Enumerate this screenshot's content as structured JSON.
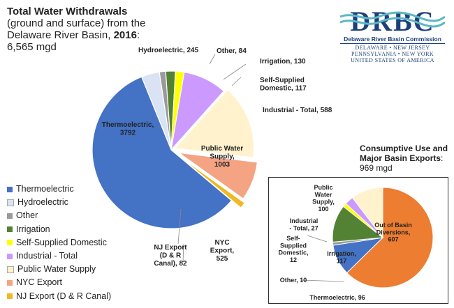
{
  "chart_data": [
    {
      "type": "pie",
      "title_bold": "Total Water Withdrawals",
      "title_line2": "(ground and surface) from the",
      "title_line3_prefix": "Delaware River Basin, ",
      "title_year": "2016",
      "title_line3_suffix": ":",
      "title_total": "6,565 mgd",
      "slices": [
        {
          "name": "Thermoelectric",
          "value": 3792,
          "color": "#4472c4",
          "label": [
            "Thermoelectric,",
            "3792"
          ]
        },
        {
          "name": "Hydroelectric",
          "value": 245,
          "color": "#dae3f3",
          "label": [
            "Hydroelectric, 245"
          ]
        },
        {
          "name": "Other",
          "value": 84,
          "color": "#9a9a9a",
          "label": [
            "Other, 84"
          ]
        },
        {
          "name": "Irrigation",
          "value": 130,
          "color": "#548235",
          "label": [
            "Irrigation, 130"
          ]
        },
        {
          "name": "Self-Supplied Domestic",
          "value": 117,
          "color": "#ffff00",
          "label": [
            "Self-Supplied",
            "Domestic, 117"
          ]
        },
        {
          "name": "Industrial - Total",
          "value": 588,
          "color": "#cc99ff",
          "label": [
            "Industrial - Total, 588"
          ]
        },
        {
          "name": "Public Water Supply",
          "value": 1003,
          "color": "#fff2cc",
          "label": [
            "Public Water",
            "Supply,",
            "1003"
          ]
        },
        {
          "name": "NYC Export",
          "value": 525,
          "color": "#f4a383",
          "label": [
            "NYC",
            "Export,",
            "525"
          ]
        },
        {
          "name": "NJ Export (D & R Canal)",
          "value": 82,
          "color": "#f0b823",
          "label": [
            "NJ Export",
            "(D & R",
            "Canal), 82"
          ]
        }
      ]
    },
    {
      "type": "pie",
      "title_bold_1": "Consumptive Use and",
      "title_bold_2": "Major Basin Exports",
      "title_suffix": ":",
      "title_total": "969 mgd",
      "slices": [
        {
          "name": "Out of Basin Diversions",
          "value": 607,
          "color": "#ed7d31",
          "label": [
            "Out of Basin",
            "Diversions,",
            "607"
          ]
        },
        {
          "name": "Thermoelectric",
          "value": 96,
          "color": "#4472c4",
          "label": [
            "Thermoelectric, 96"
          ]
        },
        {
          "name": "Other",
          "value": 10,
          "color": "#9a9a9a",
          "label": [
            "Other, 10"
          ]
        },
        {
          "name": "Irrigation",
          "value": 117,
          "color": "#548235",
          "label": [
            "Irrigation,",
            "117"
          ]
        },
        {
          "name": "Self-Supplied Domestic",
          "value": 12,
          "color": "#ffff00",
          "label": [
            "Self-",
            "Supplied",
            "Domestic,",
            "12"
          ]
        },
        {
          "name": "Industrial - Total",
          "value": 27,
          "color": "#cc99ff",
          "label": [
            "Industrial",
            "- Total, 27"
          ]
        },
        {
          "name": "Public Water Supply",
          "value": 100,
          "color": "#fff2cc",
          "label": [
            "Public",
            "Water",
            "Supply,",
            "100"
          ]
        }
      ]
    }
  ],
  "legend": [
    {
      "label": "Thermoelectric",
      "color": "#4472c4"
    },
    {
      "label": "Hydroelectric",
      "color": "#dae3f3"
    },
    {
      "label": "Other",
      "color": "#9a9a9a"
    },
    {
      "label": "Irrigation",
      "color": "#548235"
    },
    {
      "label": "Self-Supplied Domestic",
      "color": "#ffff00"
    },
    {
      "label": "Industrial - Total",
      "color": "#cc99ff"
    },
    {
      "label": "Public Water Supply",
      "color": "#fff2cc"
    },
    {
      "label": "NYC Export",
      "color": "#f4a383"
    },
    {
      "label": "NJ Export (D & R Canal)",
      "color": "#f0b823"
    }
  ],
  "logo": {
    "wordmark": "DRBC",
    "name": "Delaware River Basin Commission",
    "states_1": "DELAWARE • NEW JERSEY",
    "states_2": "PENNSYLVANIA • NEW YORK",
    "states_3": "UNITED STATES OF AMERICA",
    "color": "#1d3f7a",
    "wave_color": "#5db7c5"
  }
}
